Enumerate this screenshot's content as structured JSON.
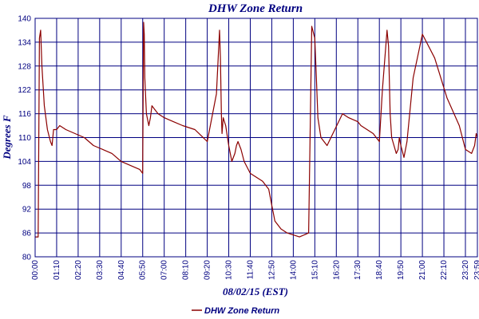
{
  "chart_data": {
    "type": "line",
    "title": "DHW Zone Return",
    "xlabel": "08/02/15 (EST)",
    "ylabel": "Degrees F",
    "ylim": [
      80,
      140
    ],
    "yticks": [
      80,
      86,
      92,
      98,
      104,
      110,
      116,
      122,
      128,
      134,
      140
    ],
    "xlim_minutes": [
      0,
      1439
    ],
    "xtick_labels": [
      "00:00",
      "01:10",
      "02:20",
      "03:30",
      "04:40",
      "05:50",
      "07:00",
      "08:10",
      "09:20",
      "10:30",
      "11:40",
      "12:50",
      "14:00",
      "15:10",
      "16:20",
      "17:30",
      "18:40",
      "19:50",
      "21:00",
      "22:10",
      "23:20",
      "23:59"
    ],
    "grid": true,
    "legend_position": "bottom-center",
    "colors": {
      "series": "#8b0000",
      "grid": "#000080",
      "text": "#000080"
    },
    "series": [
      {
        "name": "DHW Zone Return",
        "x": [
          0,
          10,
          14,
          18,
          22,
          30,
          40,
          50,
          55,
          60,
          70,
          80,
          100,
          130,
          160,
          190,
          220,
          250,
          280,
          310,
          340,
          350,
          353,
          355,
          357,
          362,
          370,
          375,
          380,
          390,
          400,
          420,
          450,
          480,
          520,
          560,
          590,
          600,
          603,
          606,
          608,
          612,
          620,
          630,
          640,
          650,
          655,
          660,
          670,
          680,
          700,
          740,
          760,
          770,
          775,
          780,
          800,
          820,
          860,
          890,
          900,
          910,
          915,
          920,
          930,
          950,
          1000,
          1020,
          1050,
          1060,
          1080,
          1100,
          1110,
          1120,
          1130,
          1145,
          1150,
          1155,
          1160,
          1175,
          1181,
          1185,
          1190,
          1200,
          1210,
          1230,
          1260,
          1300,
          1340,
          1380,
          1400,
          1420,
          1430,
          1435,
          1439
        ],
        "y": [
          85,
          85,
          135,
          137,
          128,
          118,
          112,
          109,
          108,
          112,
          112,
          113,
          112,
          111,
          110,
          108,
          107,
          106,
          104,
          103,
          102,
          101,
          139,
          136,
          125,
          116,
          113,
          115,
          118,
          117,
          116,
          115,
          114,
          113,
          112,
          109,
          121,
          137,
          130,
          116,
          111,
          115,
          113,
          108,
          104,
          106,
          108,
          109,
          107,
          104,
          101,
          99,
          97,
          93,
          91,
          89,
          87,
          86,
          85,
          86,
          138,
          135,
          125,
          115,
          110,
          108,
          116,
          115,
          114,
          113,
          112,
          111,
          110,
          109,
          122,
          137,
          133,
          116,
          110,
          106,
          107,
          110,
          108,
          105,
          109,
          125,
          136,
          130,
          120,
          113,
          107,
          106,
          108,
          111,
          110
        ]
      }
    ]
  }
}
